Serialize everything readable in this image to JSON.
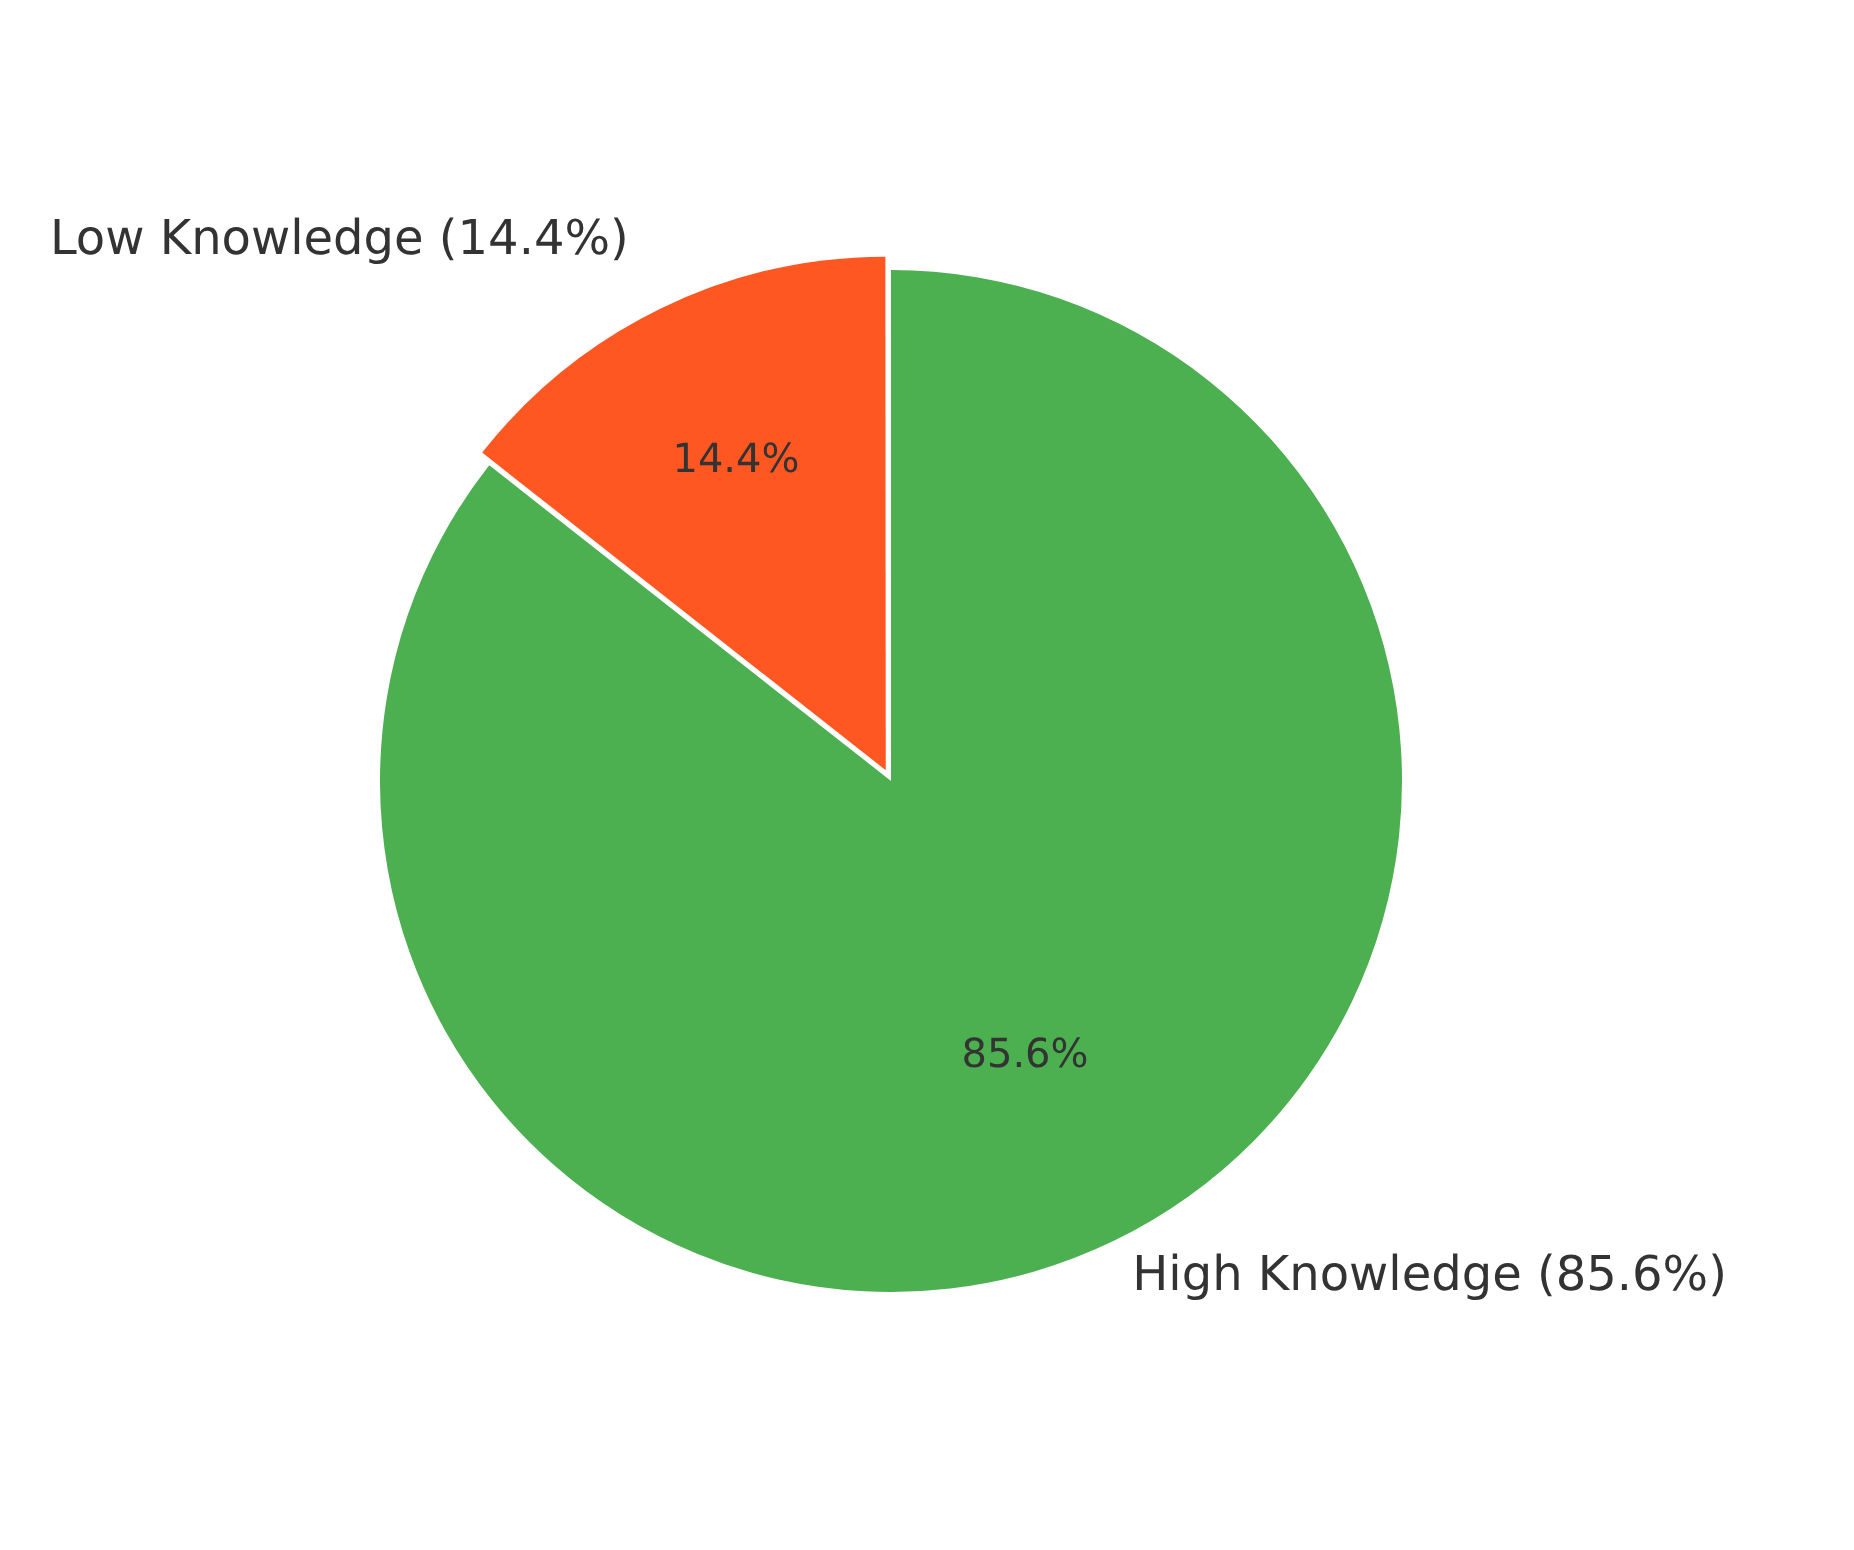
{
  "chart_data": {
    "type": "pie",
    "categories": [
      "Low Knowledge (14.4%)",
      "High Knowledge (85.6%)"
    ],
    "values": [
      14.4,
      85.6
    ],
    "colors": [
      "#ff5722",
      "#4caf50"
    ],
    "value_labels": [
      "14.4%",
      "85.6%"
    ],
    "legend": false
  }
}
